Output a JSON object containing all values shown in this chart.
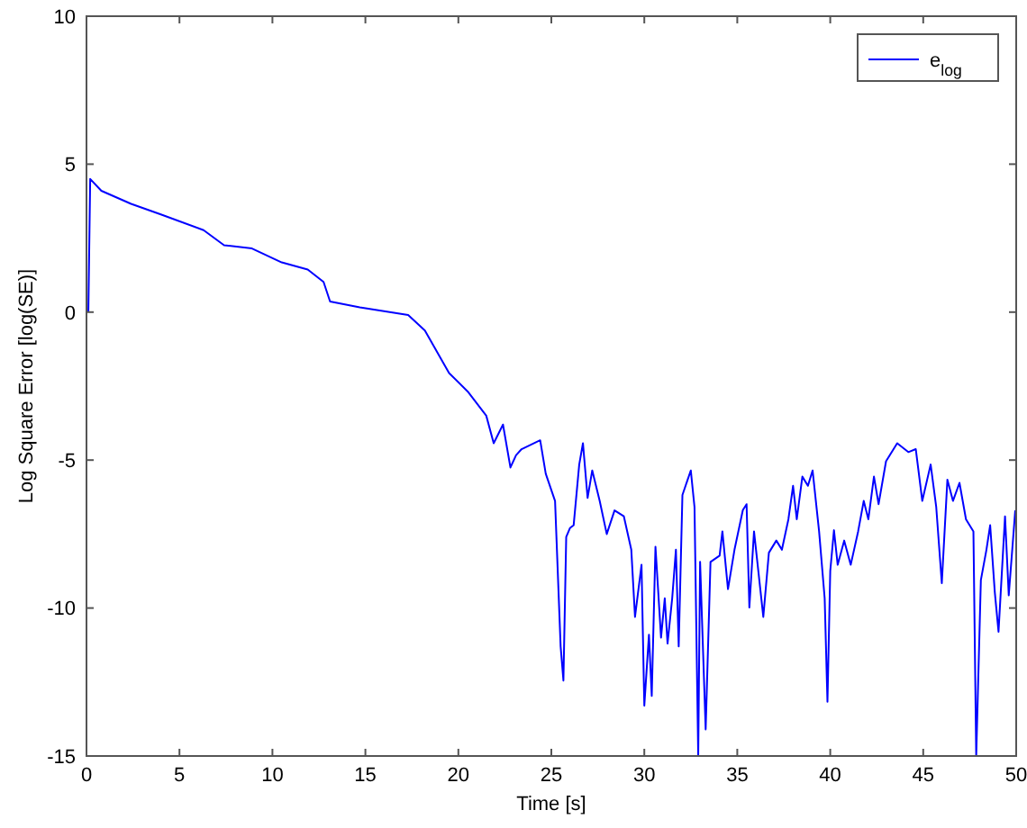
{
  "chart_data": {
    "type": "line",
    "xlabel": "Time [s]",
    "ylabel": "Log Square Error [log(SE)]",
    "xlim": [
      0,
      50
    ],
    "ylim": [
      -15,
      10
    ],
    "xticks": [
      0,
      5,
      10,
      15,
      20,
      25,
      30,
      35,
      40,
      45,
      50
    ],
    "yticks": [
      -15,
      -10,
      -5,
      0,
      5,
      10
    ],
    "grid": false,
    "legend": "top right",
    "marker": "none",
    "line_style": "solid",
    "series": [
      {
        "name": "e$_{log}$",
        "color": "#0000ff",
        "x": [
          0.1,
          0.2,
          0.8,
          2.4,
          4.0,
          6.3,
          7.4,
          8.9,
          10.5,
          11.9,
          12.75,
          13.1,
          14.7,
          17.3,
          18.2,
          19.5,
          20.5,
          21.5,
          21.9,
          22.4,
          22.8,
          23.1,
          23.4,
          24.4,
          24.7,
          25.2,
          25.5,
          25.65,
          25.8,
          26.0,
          26.2,
          26.5,
          26.7,
          26.95,
          27.2,
          27.6,
          27.98,
          28.4,
          28.9,
          29.3,
          29.5,
          29.85,
          30.0,
          30.25,
          30.4,
          30.6,
          30.9,
          31.1,
          31.25,
          31.5,
          31.7,
          31.85,
          32.05,
          32.5,
          32.7,
          32.9,
          33.0,
          33.3,
          33.56,
          34.05,
          34.2,
          34.5,
          34.85,
          35.3,
          35.5,
          35.65,
          35.9,
          36.4,
          36.7,
          37.1,
          37.4,
          37.75,
          38.0,
          38.2,
          38.5,
          38.8,
          39.05,
          39.4,
          39.7,
          39.85,
          40.0,
          40.2,
          40.4,
          40.75,
          41.1,
          41.5,
          41.8,
          42.05,
          42.35,
          42.6,
          43.0,
          43.6,
          44.2,
          44.6,
          44.95,
          45.4,
          45.7,
          46.0,
          46.3,
          46.6,
          46.95,
          47.3,
          47.7,
          47.85,
          48.1,
          48.4,
          48.6,
          48.85,
          49.05,
          49.4,
          49.6,
          49.95
        ],
        "values": [
          0,
          4.5,
          4.1,
          3.66,
          3.3,
          2.77,
          2.26,
          2.15,
          1.68,
          1.44,
          1.02,
          0.36,
          0.16,
          -0.1,
          -0.62,
          -2.06,
          -2.68,
          -3.5,
          -4.43,
          -3.8,
          -5.25,
          -4.84,
          -4.63,
          -4.33,
          -5.46,
          -6.38,
          -11.3,
          -12.45,
          -7.6,
          -7.3,
          -7.2,
          -5.15,
          -4.43,
          -6.28,
          -5.35,
          -6.38,
          -7.5,
          -6.7,
          -6.9,
          -8.03,
          -10.3,
          -8.54,
          -13.3,
          -10.9,
          -12.97,
          -7.93,
          -11.0,
          -9.67,
          -11.2,
          -9.67,
          -8.03,
          -11.3,
          -6.18,
          -5.35,
          -6.59,
          -15.0,
          -8.44,
          -14.1,
          -8.44,
          -8.23,
          -7.41,
          -9.36,
          -8.03,
          -6.69,
          -6.49,
          -9.98,
          -7.41,
          -10.3,
          -8.13,
          -7.72,
          -8.03,
          -7.0,
          -5.87,
          -7.0,
          -5.56,
          -5.87,
          -5.35,
          -7.41,
          -9.67,
          -13.17,
          -8.75,
          -7.37,
          -8.54,
          -7.72,
          -8.54,
          -7.41,
          -6.38,
          -7.0,
          -5.56,
          -6.49,
          -5.04,
          -4.43,
          -4.73,
          -4.63,
          -6.38,
          -5.15,
          -6.59,
          -9.16,
          -5.66,
          -6.38,
          -5.77,
          -7.0,
          -7.41,
          -15.0,
          -9.06,
          -8.03,
          -7.2,
          -9.47,
          -10.8,
          -6.9,
          -9.57,
          -6.7
        ]
      }
    ]
  }
}
